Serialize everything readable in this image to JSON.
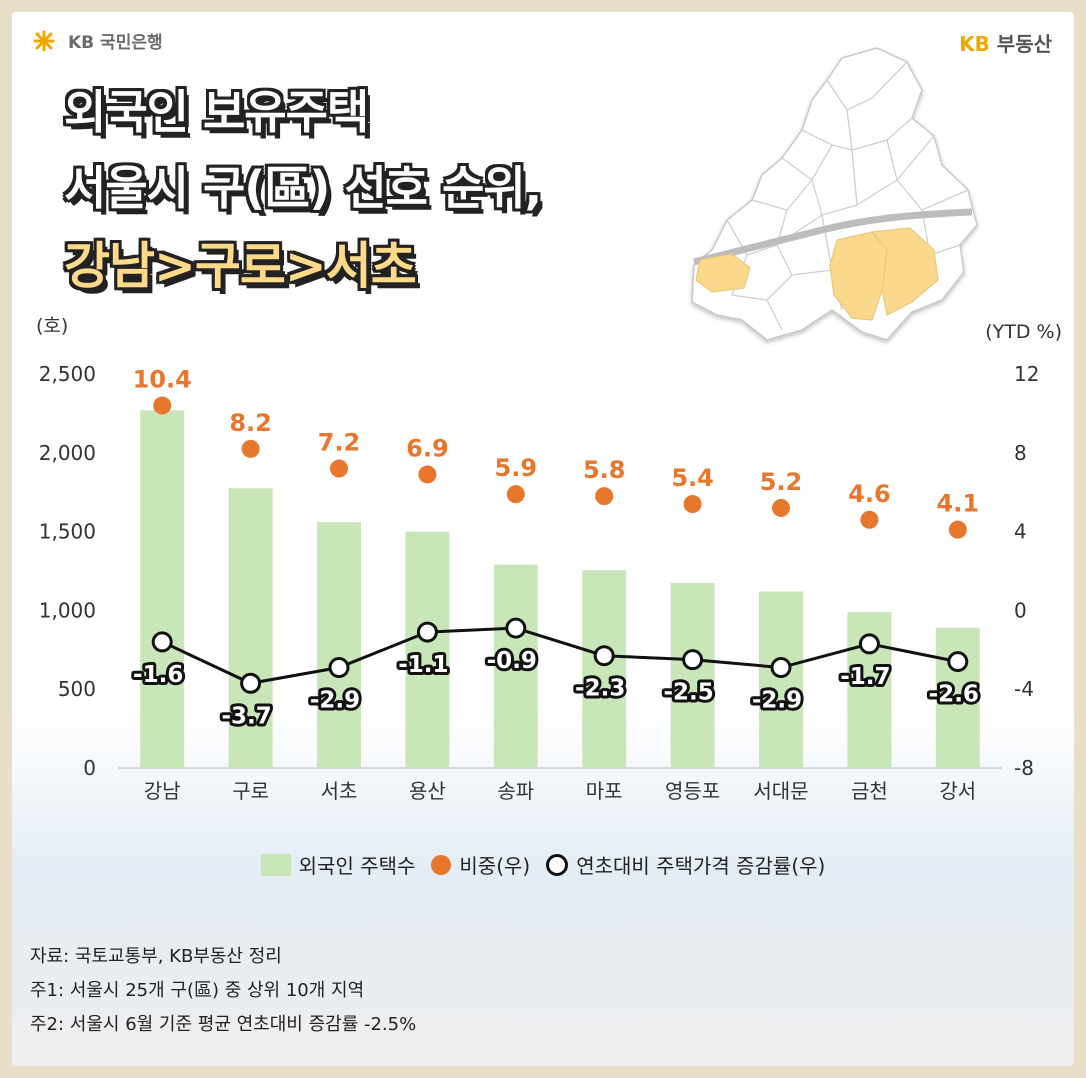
{
  "header": {
    "bank_logo": "KB 국민은행",
    "brand_kb": "KB",
    "brand_name": "부동산"
  },
  "title": {
    "line1": "외국인 보유주택",
    "line2": "서울시 구(區) 선호 순위,",
    "line3": "강남>구로>서초"
  },
  "chart_data": {
    "type": "bar",
    "categories": [
      "강남",
      "구로",
      "서초",
      "용산",
      "송파",
      "마포",
      "영등포",
      "서대문",
      "금천",
      "강서"
    ],
    "y_left_label": "(호)",
    "y_right_label": "(YTD %)",
    "y_left_ticks": [
      "2,500",
      "2,000",
      "1,500",
      "1,000",
      "500",
      "0"
    ],
    "y_left_tick_values": [
      2500,
      2000,
      1500,
      1000,
      500,
      0
    ],
    "y_right_ticks": [
      "12",
      "8",
      "4",
      "0",
      "-4",
      "-8"
    ],
    "y_right_tick_values": [
      12,
      8,
      4,
      0,
      -4,
      -8
    ],
    "ylim_left": [
      0,
      2500
    ],
    "ylim_right": [
      -8,
      12
    ],
    "series": [
      {
        "name": "외국인 주택수",
        "type": "bar",
        "axis": "left",
        "color": "#c9e6b9",
        "values": [
          2270,
          1775,
          1560,
          1500,
          1290,
          1255,
          1175,
          1120,
          990,
          890
        ]
      },
      {
        "name": "비중(우)",
        "type": "scatter",
        "axis": "right",
        "color": "#e8772e",
        "values": [
          10.4,
          8.2,
          7.2,
          6.9,
          5.9,
          5.8,
          5.4,
          5.2,
          4.6,
          4.1
        ],
        "labels": [
          "10.4",
          "8.2",
          "7.2",
          "6.9",
          "5.9",
          "5.8",
          "5.4",
          "5.2",
          "4.6",
          "4.1"
        ]
      },
      {
        "name": "연초대비 주택가격 증감률(우)",
        "type": "line",
        "axis": "right",
        "color": "#111111",
        "values": [
          -1.6,
          -3.7,
          -2.9,
          -1.1,
          -0.9,
          -2.3,
          -2.5,
          -2.9,
          -1.7,
          -2.6
        ],
        "labels": [
          "-1.6",
          "-3.7",
          "-2.9",
          "-1.1",
          "-0.9",
          "-2.3",
          "-2.5",
          "-2.9",
          "-1.7",
          "-2.6"
        ]
      }
    ]
  },
  "legend": {
    "bars": "외국인 주택수",
    "share": "비중(우)",
    "change": "연초대비 주택가격 증감률(우)"
  },
  "notes": {
    "source": "자료: 국토교통부, KB부동산 정리",
    "note1": "주1: 서울시 25개 구(區) 중 상위 10개 지역",
    "note2": "주2: 서울시 6월 기준 평균 연초대비 증감률 -2.5%"
  },
  "colors": {
    "highlight_district": "#fad98c",
    "bar": "#c9e6b9",
    "share_dot": "#e8772e"
  }
}
